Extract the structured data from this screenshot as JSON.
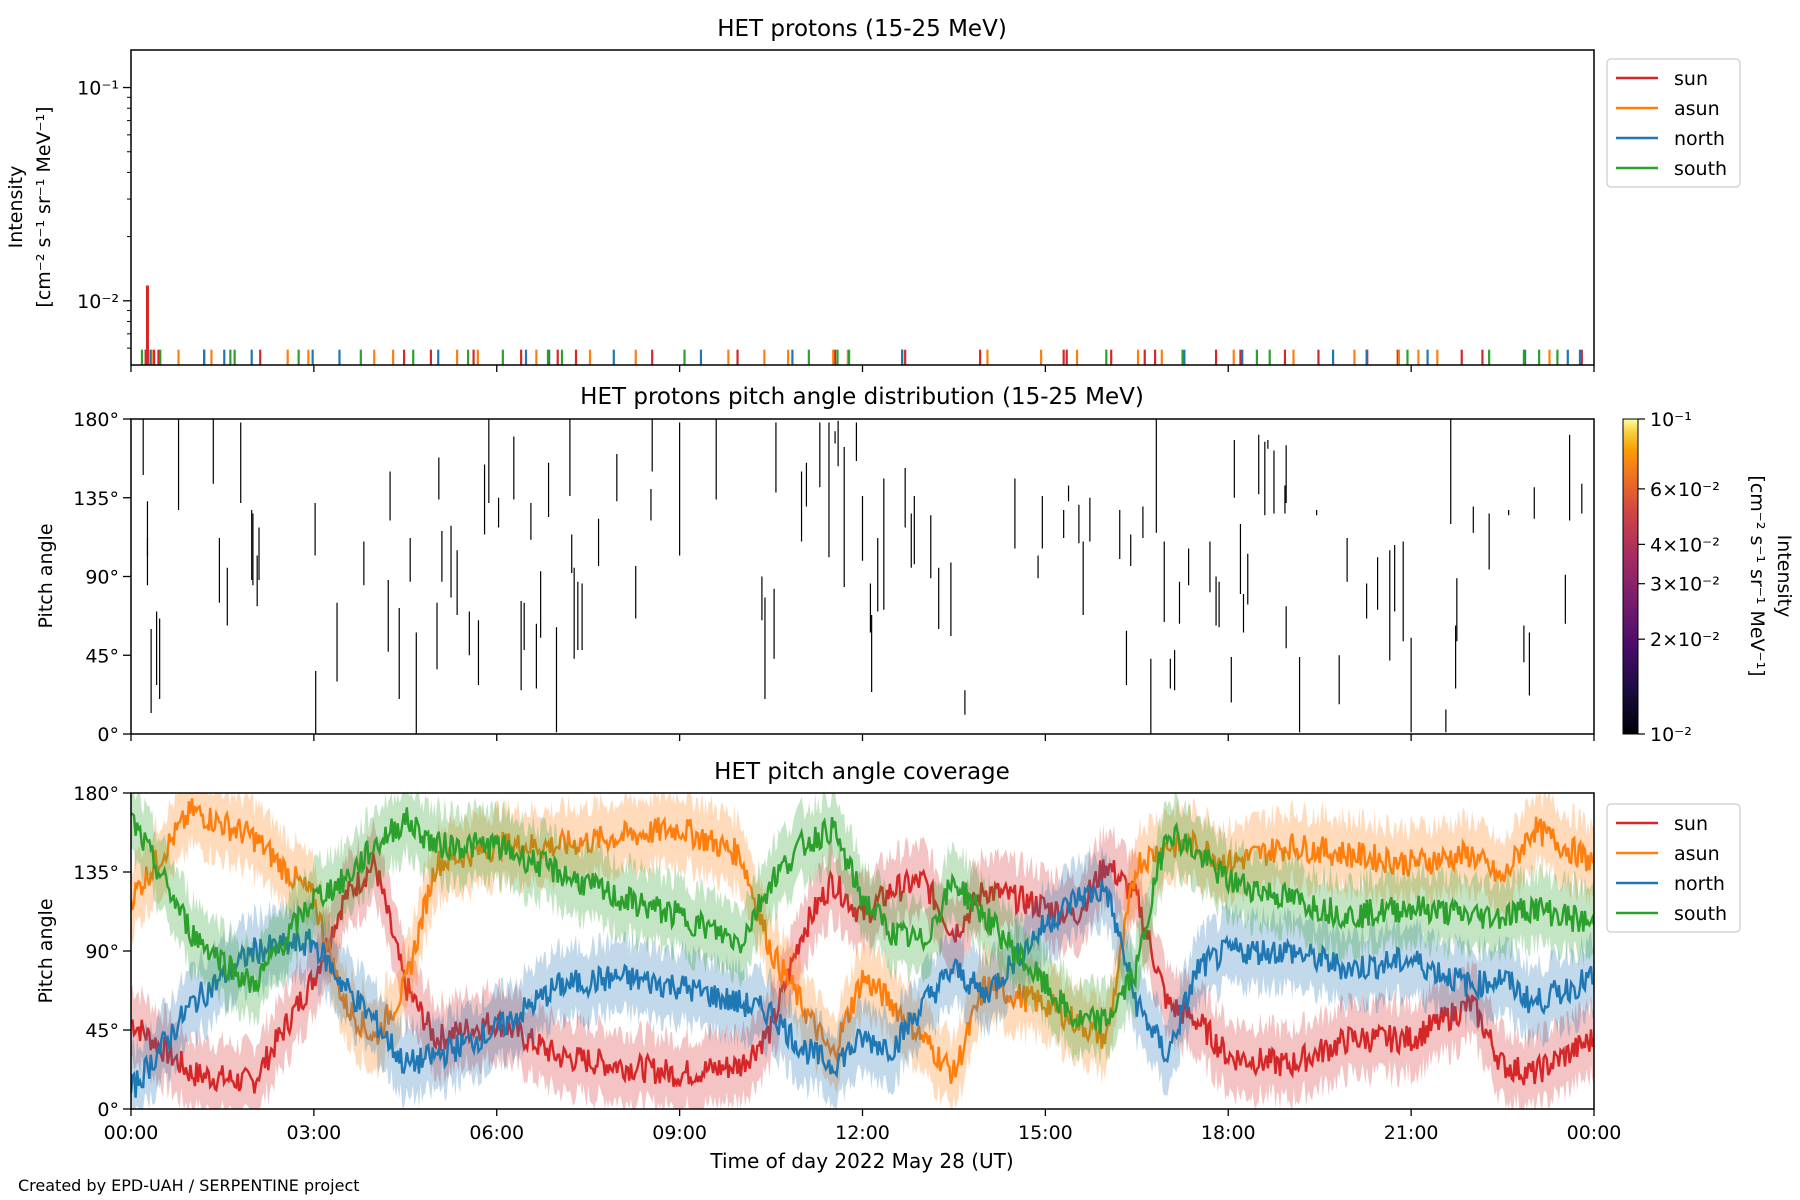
{
  "footer": "Created by EPD-UAH / SERPENTINE project",
  "xlabel": "Time of day 2022 May 28 (UT)",
  "x_ticks": [
    "00:00",
    "03:00",
    "06:00",
    "09:00",
    "12:00",
    "15:00",
    "18:00",
    "21:00",
    "00:00"
  ],
  "series_colors": {
    "sun": "#d62728",
    "asun": "#ff7f0e",
    "north": "#1f77b4",
    "south": "#2ca02c"
  },
  "chart_data": [
    {
      "type": "line",
      "title": "HET protons (15-25 MeV)",
      "ylabel_line1": "Intensity",
      "ylabel_line2": "[cm⁻² s⁻¹ sr⁻¹ MeV⁻¹]",
      "yscale": "log",
      "ylim": [
        0.005,
        0.15
      ],
      "y_ticks": [
        {
          "value": 0.1,
          "label": "10⁻¹"
        },
        {
          "value": 0.01,
          "label": "10⁻²"
        }
      ],
      "xlim_hours": [
        0,
        24
      ],
      "legend": "upper right outside",
      "spikes_hours": {
        "sun": [
          0.24,
          0.25,
          0.38,
          0.45,
          1.2,
          2.12,
          4.48,
          4.92,
          5.62,
          6.4,
          7.0,
          7.3,
          8.55,
          9.95,
          11.55,
          12.65,
          12.7,
          13.93,
          15.3,
          15.35,
          16.08,
          16.63,
          16.8,
          17.8,
          18.2,
          18.93,
          19.48,
          20.28,
          20.78,
          21.83,
          22.17,
          23.8
        ],
        "asun": [
          0.27,
          0.34,
          0.78,
          1.32,
          2.57,
          2.91,
          3.99,
          4.3,
          5.35,
          5.69,
          6.65,
          7.53,
          8.28,
          9.8,
          10.39,
          10.78,
          11.52,
          11.76,
          14.05,
          14.93,
          15.52,
          16.52,
          16.91,
          18.09,
          19.07,
          20.07,
          20.8,
          21.12,
          21.43,
          23.27
        ],
        "north": [
          0.32,
          1.2,
          1.53,
          1.98,
          2.98,
          3.42,
          5.04,
          6.48,
          6.86,
          7.92,
          9.35,
          10.85,
          12.65,
          17.28,
          18.23,
          19.72,
          20.27,
          21.27,
          22.87,
          23.57,
          23.77
        ],
        "south": [
          0.18,
          0.48,
          1.63,
          1.7,
          2.75,
          3.77,
          4.63,
          5.53,
          6.1,
          6.84,
          7.07,
          9.08,
          11.12,
          11.59,
          11.78,
          16.0,
          17.25,
          18.47,
          18.68,
          20.94,
          22.28,
          22.85,
          23.1,
          23.4
        ]
      },
      "peak": {
        "series": "sun",
        "hour": 0.27,
        "value": 0.0118
      },
      "legend_entries": [
        "sun",
        "asun",
        "north",
        "south"
      ]
    },
    {
      "type": "heatmap",
      "title": "HET protons pitch angle distribution (15-25 MeV)",
      "ylabel": "Pitch angle",
      "ylim": [
        0,
        180
      ],
      "y_ticks": [
        "0°",
        "45°",
        "90°",
        "135°",
        "180°"
      ],
      "xlim_hours": [
        0,
        24
      ],
      "colorbar": {
        "label_line1": "Intensity",
        "label_line2": "[cm⁻² s⁻¹ sr⁻¹ MeV⁻¹]",
        "scale": "log",
        "range": [
          0.01,
          0.1
        ],
        "colormap": "inferno",
        "ticks": [
          {
            "value": 0.1,
            "label": "10⁻¹"
          },
          {
            "value": 0.06,
            "label": "6×10⁻²"
          },
          {
            "value": 0.04,
            "label": "4×10⁻²"
          },
          {
            "value": 0.03,
            "label": "3×10⁻²"
          },
          {
            "value": 0.02,
            "label": "2×10⁻²"
          },
          {
            "value": 0.01,
            "label": "10⁻²"
          }
        ]
      },
      "segments": [
        [
          0.2,
          148,
          180
        ],
        [
          0.27,
          102,
          133
        ],
        [
          0.27,
          85,
          112
        ],
        [
          0.33,
          12,
          60
        ],
        [
          0.42,
          28,
          70
        ],
        [
          0.47,
          20,
          66
        ],
        [
          0.78,
          128,
          180
        ],
        [
          1.35,
          143,
          180
        ],
        [
          1.45,
          75,
          112
        ],
        [
          1.58,
          62,
          95
        ],
        [
          1.8,
          132,
          178
        ],
        [
          1.98,
          88,
          128
        ],
        [
          2.0,
          85,
          126
        ],
        [
          2.1,
          88,
          118
        ],
        [
          2.07,
          73,
          102
        ],
        [
          3.03,
          0,
          36
        ],
        [
          3.02,
          132,
          102
        ],
        [
          3.38,
          30,
          75
        ],
        [
          3.82,
          110,
          85
        ],
        [
          4.22,
          47,
          88
        ],
        [
          4.25,
          150,
          122
        ],
        [
          4.4,
          20,
          72
        ],
        [
          4.58,
          112,
          87
        ],
        [
          4.68,
          0,
          58
        ],
        [
          5.05,
          134,
          158
        ],
        [
          5.02,
          37,
          75
        ],
        [
          5.1,
          116,
          87
        ],
        [
          5.25,
          119,
          78
        ],
        [
          5.35,
          105,
          68
        ],
        [
          5.55,
          45,
          70
        ],
        [
          5.7,
          28,
          65
        ],
        [
          5.8,
          114,
          154
        ],
        [
          5.87,
          180,
          132
        ],
        [
          6.03,
          135,
          118
        ],
        [
          6.28,
          170,
          134
        ],
        [
          6.4,
          25,
          76
        ],
        [
          6.45,
          48,
          75
        ],
        [
          6.56,
          111,
          132
        ],
        [
          6.65,
          26,
          63
        ],
        [
          6.72,
          55,
          93
        ],
        [
          6.85,
          124,
          155
        ],
        [
          6.98,
          1,
          61
        ],
        [
          7.23,
          114,
          92
        ],
        [
          7.2,
          136,
          180
        ],
        [
          7.27,
          43,
          95
        ],
        [
          7.33,
          48,
          87
        ],
        [
          7.4,
          48,
          86
        ],
        [
          7.67,
          96,
          123
        ],
        [
          7.97,
          133,
          160
        ],
        [
          8.28,
          66,
          96
        ],
        [
          8.53,
          122,
          140
        ],
        [
          8.55,
          150,
          180
        ],
        [
          9.0,
          102,
          178
        ],
        [
          9.6,
          134,
          180
        ],
        [
          10.35,
          65,
          90
        ],
        [
          10.4,
          20,
          78
        ],
        [
          10.55,
          43,
          83
        ],
        [
          10.58,
          178,
          138
        ],
        [
          11.0,
          150,
          110
        ],
        [
          11.08,
          155,
          130
        ],
        [
          11.3,
          141,
          178
        ],
        [
          11.45,
          101,
          178
        ],
        [
          11.55,
          173,
          166
        ],
        [
          11.7,
          84,
          164
        ],
        [
          11.6,
          179,
          153
        ],
        [
          11.9,
          156,
          178
        ],
        [
          12.0,
          99,
          136
        ],
        [
          12.13,
          58,
          86
        ],
        [
          12.15,
          24,
          68
        ],
        [
          12.25,
          70,
          112
        ],
        [
          12.35,
          71,
          146
        ],
        [
          12.7,
          118,
          152
        ],
        [
          12.8,
          95,
          126
        ],
        [
          12.85,
          97,
          136
        ],
        [
          13.12,
          89,
          125
        ],
        [
          13.25,
          60,
          95
        ],
        [
          13.45,
          98,
          56
        ],
        [
          13.68,
          11,
          25
        ],
        [
          14.5,
          106,
          146
        ],
        [
          14.88,
          89,
          102
        ],
        [
          14.95,
          106,
          136
        ],
        [
          15.3,
          128,
          112
        ],
        [
          15.38,
          142,
          133
        ],
        [
          15.55,
          109,
          131
        ],
        [
          15.62,
          68,
          110
        ],
        [
          15.73,
          110,
          135
        ],
        [
          16.22,
          100,
          128
        ],
        [
          16.33,
          28,
          59
        ],
        [
          16.4,
          96,
          114
        ],
        [
          16.6,
          112,
          130
        ],
        [
          16.73,
          0,
          43
        ],
        [
          16.82,
          115,
          180
        ],
        [
          16.95,
          64,
          110
        ],
        [
          17.05,
          26,
          43
        ],
        [
          17.12,
          25,
          48
        ],
        [
          17.2,
          63,
          87
        ],
        [
          17.35,
          85,
          106
        ],
        [
          17.7,
          81,
          110
        ],
        [
          17.8,
          62,
          90
        ],
        [
          17.85,
          61,
          87
        ],
        [
          18.05,
          18,
          44
        ],
        [
          18.1,
          135,
          168
        ],
        [
          18.2,
          80,
          120
        ],
        [
          18.25,
          58,
          80
        ],
        [
          18.32,
          74,
          103
        ],
        [
          18.5,
          171,
          137
        ],
        [
          18.6,
          125,
          167
        ],
        [
          18.65,
          168,
          163
        ],
        [
          18.75,
          126,
          162
        ],
        [
          18.93,
          126,
          142
        ],
        [
          18.95,
          49,
          73
        ],
        [
          18.95,
          132,
          165
        ],
        [
          19.17,
          1,
          44
        ],
        [
          19.45,
          128,
          125
        ],
        [
          19.82,
          17,
          45
        ],
        [
          19.95,
          87,
          112
        ],
        [
          20.27,
          66,
          86
        ],
        [
          20.45,
          71,
          101
        ],
        [
          20.65,
          42,
          105
        ],
        [
          20.73,
          70,
          108
        ],
        [
          20.87,
          53,
          110
        ],
        [
          21.0,
          1,
          55
        ],
        [
          21.57,
          1,
          14
        ],
        [
          21.73,
          26,
          62
        ],
        [
          21.75,
          53,
          89
        ],
        [
          21.65,
          120,
          180
        ],
        [
          22.02,
          130,
          115
        ],
        [
          22.28,
          126,
          94
        ],
        [
          22.6,
          125,
          128
        ],
        [
          22.85,
          41,
          62
        ],
        [
          22.94,
          22,
          58
        ],
        [
          23.02,
          123,
          141
        ],
        [
          23.53,
          91,
          63
        ],
        [
          23.6,
          171,
          122
        ],
        [
          23.8,
          143,
          126
        ]
      ]
    },
    {
      "type": "area",
      "title": "HET pitch angle coverage",
      "ylabel": "Pitch angle",
      "ylim": [
        0,
        180
      ],
      "y_ticks": [
        "0°",
        "45°",
        "90°",
        "135°",
        "180°"
      ],
      "xlim_hours": [
        0,
        24
      ],
      "legend": "upper right outside",
      "legend_entries": [
        "sun",
        "asun",
        "north",
        "south"
      ],
      "band_halfwidth_deg": 20,
      "series": [
        {
          "name": "sun",
          "x_hours": [
            0,
            1,
            2,
            3,
            3.5,
            4,
            4.5,
            5,
            6,
            7,
            8,
            9,
            10,
            10.5,
            11,
            11.5,
            12,
            12.5,
            13,
            13.5,
            14,
            15,
            15.5,
            16,
            16.5,
            17,
            17.5,
            18,
            19,
            20,
            21,
            22,
            22.5,
            23,
            24
          ],
          "values": [
            50,
            20,
            15,
            75,
            120,
            140,
            70,
            40,
            50,
            30,
            25,
            20,
            25,
            45,
            100,
            130,
            110,
            125,
            130,
            100,
            125,
            115,
            110,
            140,
            120,
            60,
            50,
            30,
            25,
            40,
            40,
            60,
            25,
            20,
            40
          ]
        },
        {
          "name": "asun",
          "x_hours": [
            0,
            1,
            2,
            3,
            3.5,
            4,
            4.5,
            5,
            6,
            7,
            8,
            9,
            10,
            10.5,
            11,
            11.5,
            12,
            12.5,
            13,
            13.5,
            14,
            15,
            15.5,
            16,
            16.5,
            17,
            17.5,
            18,
            19,
            20,
            21,
            22,
            22.5,
            23,
            24
          ],
          "values": [
            120,
            170,
            155,
            120,
            60,
            40,
            70,
            140,
            150,
            150,
            155,
            160,
            145,
            90,
            60,
            30,
            75,
            60,
            40,
            20,
            70,
            60,
            50,
            40,
            140,
            150,
            150,
            140,
            150,
            145,
            140,
            145,
            130,
            160,
            140
          ]
        },
        {
          "name": "north",
          "x_hours": [
            0,
            1,
            2,
            3,
            3.5,
            4,
            4.5,
            5,
            6,
            7,
            8,
            9,
            10,
            10.5,
            11,
            11.5,
            12,
            12.5,
            13,
            13.5,
            14,
            15,
            15.5,
            16,
            16.5,
            17,
            17.5,
            18,
            19,
            20,
            21,
            22,
            22.5,
            23,
            24
          ],
          "values": [
            10,
            60,
            90,
            95,
            70,
            50,
            25,
            30,
            45,
            70,
            75,
            70,
            60,
            55,
            35,
            25,
            40,
            35,
            60,
            80,
            65,
            105,
            120,
            125,
            60,
            30,
            80,
            90,
            90,
            80,
            85,
            70,
            75,
            60,
            75
          ]
        },
        {
          "name": "south",
          "x_hours": [
            0,
            1,
            2,
            3,
            3.5,
            4,
            4.5,
            5,
            6,
            7,
            8,
            9,
            10,
            10.5,
            11,
            11.5,
            12,
            12.5,
            13,
            13.5,
            14,
            15,
            15.5,
            16,
            16.5,
            17,
            17.5,
            18,
            19,
            20,
            21,
            22,
            22.5,
            23,
            24
          ],
          "values": [
            165,
            100,
            70,
            120,
            130,
            150,
            165,
            150,
            150,
            135,
            120,
            110,
            95,
            130,
            150,
            160,
            120,
            100,
            95,
            130,
            110,
            70,
            50,
            50,
            80,
            160,
            145,
            130,
            120,
            110,
            115,
            110,
            110,
            115,
            105
          ]
        }
      ]
    }
  ]
}
